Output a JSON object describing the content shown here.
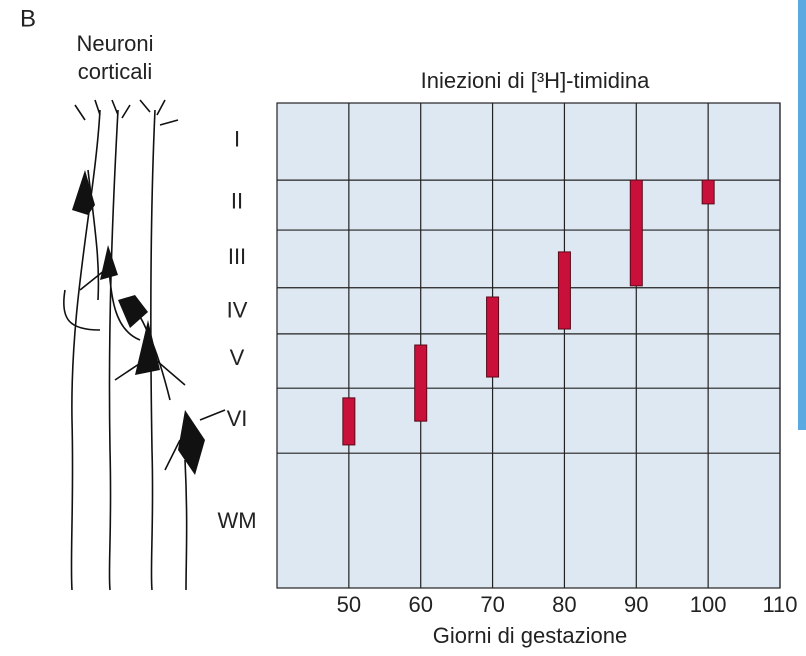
{
  "chart_data": {
    "type": "range",
    "panel_label": "B",
    "side_label": [
      "Neuroni",
      "corticali"
    ],
    "title": "Iniezioni di [³H]-timidina",
    "x_label": "Giorni di gestazione",
    "x": [
      50,
      60,
      70,
      80,
      90,
      100
    ],
    "start": [
      60.8,
      49.9,
      40,
      30.7,
      15.9,
      15.9
    ],
    "end": [
      70.5,
      65.6,
      56.5,
      46.6,
      37.7,
      20.8
    ],
    "color": "#c8103a",
    "xlim": [
      40,
      110
    ],
    "xticks": [
      50,
      60,
      70,
      80,
      90,
      100,
      110
    ],
    "ylim": [
      0,
      100
    ],
    "yticks": [
      {
        "value": 7.8,
        "label": "I"
      },
      {
        "value": 20.6,
        "label": "II"
      },
      {
        "value": 32,
        "label": "III"
      },
      {
        "value": 43,
        "label": "IV"
      },
      {
        "value": 52.8,
        "label": "V"
      },
      {
        "value": 65.4,
        "label": "VI"
      },
      {
        "value": 86.4,
        "label": "WM"
      }
    ],
    "ygrid": [
      15.9,
      26.2,
      38.1,
      47.6,
      58.8,
      72.2
    ],
    "grid": true
  }
}
